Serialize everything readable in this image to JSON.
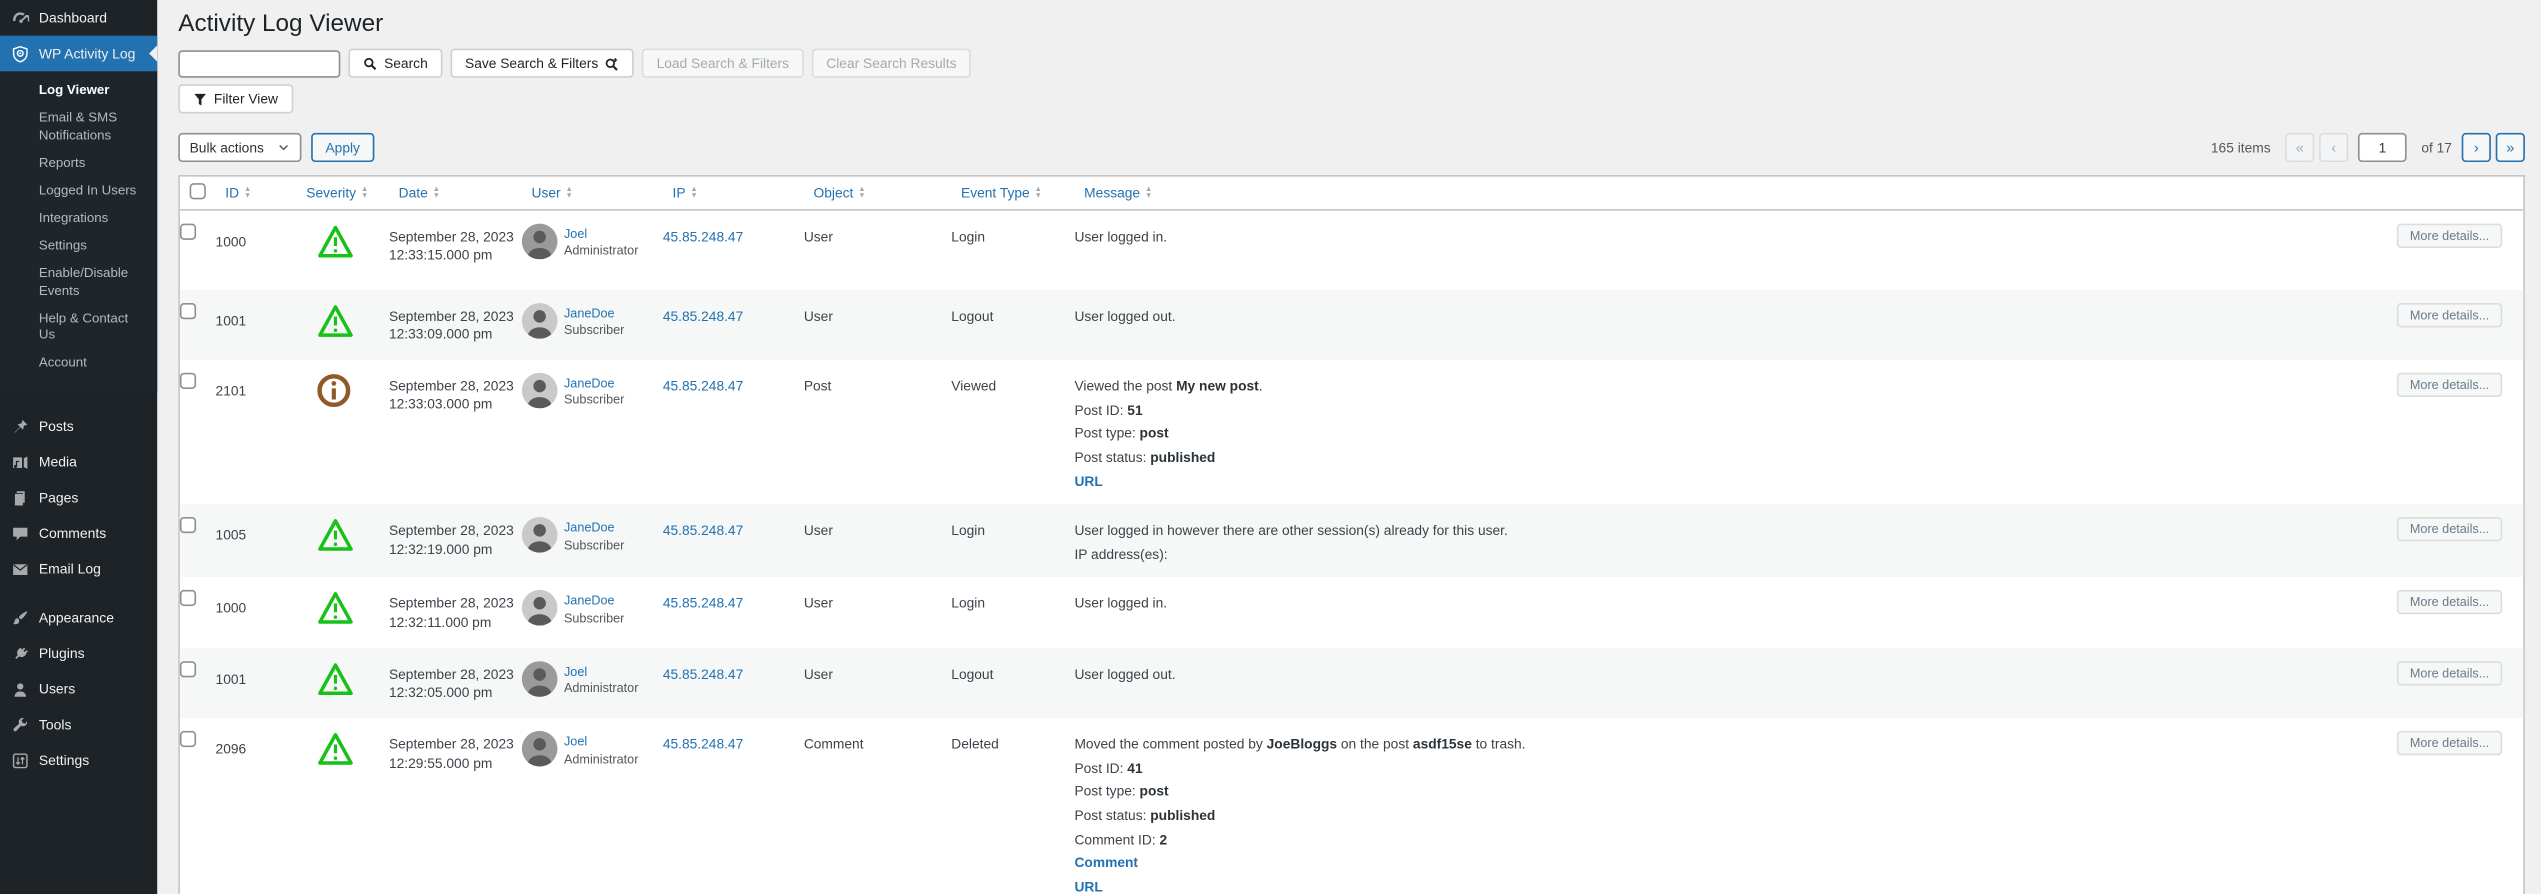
{
  "app": {
    "page_title": "Activity Log Viewer"
  },
  "colors": {
    "accent_blue": "#2271b1",
    "severity_low_green": "#17c117",
    "severity_info_brown": "#8f5a27",
    "sidebar_bg": "#1d2327",
    "content_bg": "#f0f0f1"
  },
  "sidebar": {
    "dashboard": "Dashboard",
    "plugin": "WP Activity Log",
    "submenu": [
      "Log Viewer",
      "Email & SMS Notifications",
      "Reports",
      "Logged In Users",
      "Integrations",
      "Settings",
      "Enable/Disable Events",
      "Help & Contact Us",
      "Account"
    ],
    "main": [
      "Posts",
      "Media",
      "Pages",
      "Comments",
      "Email Log",
      "Appearance",
      "Plugins",
      "Users",
      "Tools",
      "Settings"
    ]
  },
  "toolbar": {
    "search_value": "",
    "search": "Search",
    "save": "Save Search & Filters",
    "load": "Load Search & Filters",
    "clear": "Clear Search Results",
    "filter_view": "Filter View"
  },
  "bulk": {
    "selected": "Bulk actions",
    "apply": "Apply"
  },
  "pagination": {
    "count": "165 items",
    "first": "«",
    "prev": "‹",
    "page_value": "1",
    "of": "of 17",
    "next": "›",
    "last": "»"
  },
  "table": {
    "headers": [
      "ID",
      "Severity",
      "Date",
      "User",
      "IP",
      "Object",
      "Event Type",
      "Message"
    ],
    "more_details": "More details...",
    "rows": [
      {
        "id": "1000",
        "severity": "warning",
        "date": "September 28, 2023",
        "time": "12:33:15.000 pm",
        "user": "Joel",
        "role": "Administrator",
        "ip": "45.85.248.47",
        "object": "User",
        "event": "Login",
        "message": [
          [
            {
              "t": "User logged in."
            }
          ]
        ]
      },
      {
        "id": "1001",
        "severity": "warning",
        "date": "September 28, 2023",
        "time": "12:33:09.000 pm",
        "user": "JaneDoe",
        "role": "Subscriber",
        "ip": "45.85.248.47",
        "object": "User",
        "event": "Logout",
        "message": [
          [
            {
              "t": "User logged out."
            }
          ]
        ]
      },
      {
        "id": "2101",
        "severity": "info",
        "date": "September 28, 2023",
        "time": "12:33:03.000 pm",
        "user": "JaneDoe",
        "role": "Subscriber",
        "ip": "45.85.248.47",
        "object": "Post",
        "event": "Viewed",
        "message": [
          [
            {
              "t": "Viewed the post "
            },
            {
              "t": "My new post",
              "b": true
            },
            {
              "t": "."
            }
          ],
          [
            {
              "t": "Post ID: "
            },
            {
              "t": "51",
              "b": true
            }
          ],
          [
            {
              "t": "Post type: "
            },
            {
              "t": "post",
              "b": true
            }
          ],
          [
            {
              "t": "Post status: "
            },
            {
              "t": "published",
              "b": true
            }
          ],
          [
            {
              "t": "URL",
              "link": true
            }
          ]
        ]
      },
      {
        "id": "1005",
        "severity": "warning",
        "date": "September 28, 2023",
        "time": "12:32:19.000 pm",
        "user": "JaneDoe",
        "role": "Subscriber",
        "ip": "45.85.248.47",
        "object": "User",
        "event": "Login",
        "message": [
          [
            {
              "t": "User logged in however there are other session(s) already for this user."
            }
          ],
          [
            {
              "t": "IP address(es):"
            }
          ]
        ]
      },
      {
        "id": "1000",
        "severity": "warning",
        "date": "September 28, 2023",
        "time": "12:32:11.000 pm",
        "user": "JaneDoe",
        "role": "Subscriber",
        "ip": "45.85.248.47",
        "object": "User",
        "event": "Login",
        "message": [
          [
            {
              "t": "User logged in."
            }
          ]
        ]
      },
      {
        "id": "1001",
        "severity": "warning",
        "date": "September 28, 2023",
        "time": "12:32:05.000 pm",
        "user": "Joel",
        "role": "Administrator",
        "ip": "45.85.248.47",
        "object": "User",
        "event": "Logout",
        "message": [
          [
            {
              "t": "User logged out."
            }
          ]
        ]
      },
      {
        "id": "2096",
        "severity": "warning",
        "date": "September 28, 2023",
        "time": "12:29:55.000 pm",
        "user": "Joel",
        "role": "Administrator",
        "ip": "45.85.248.47",
        "object": "Comment",
        "event": "Deleted",
        "message": [
          [
            {
              "t": "Moved the comment posted by "
            },
            {
              "t": "JoeBloggs",
              "b": true
            },
            {
              "t": " on the post "
            },
            {
              "t": "asdf15se",
              "b": true
            },
            {
              "t": " to trash."
            }
          ],
          [
            {
              "t": "Post ID: "
            },
            {
              "t": "41",
              "b": true
            }
          ],
          [
            {
              "t": "Post type: "
            },
            {
              "t": "post",
              "b": true
            }
          ],
          [
            {
              "t": "Post status: "
            },
            {
              "t": "published",
              "b": true
            }
          ],
          [
            {
              "t": "Comment ID: "
            },
            {
              "t": "2",
              "b": true
            }
          ],
          [
            {
              "t": "Comment",
              "link": true
            }
          ],
          [
            {
              "t": "URL",
              "link": true
            }
          ]
        ]
      }
    ]
  }
}
